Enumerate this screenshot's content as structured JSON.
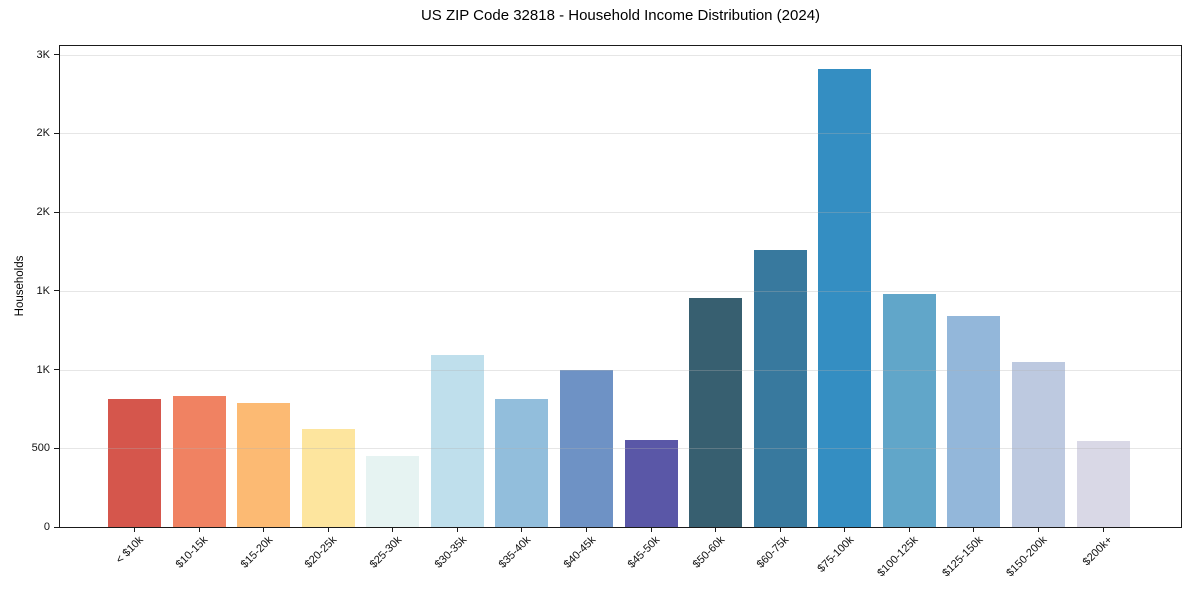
{
  "chart_data": {
    "type": "bar",
    "title": "US ZIP Code 32818 - Household Income Distribution (2024)",
    "xlabel": "",
    "ylabel": "Households",
    "ylim": [
      0,
      3055
    ],
    "grid": "horizontal",
    "legend": "none",
    "background": "#ffffff",
    "axis_color": "#1a1a1a",
    "grid_color": "#e3e3e3",
    "categories": [
      "< $10k",
      "$10-15k",
      "$15-20k",
      "$20-25k",
      "$25-30k",
      "$30-35k",
      "$35-40k",
      "$40-45k",
      "$45-50k",
      "$50-60k",
      "$60-75k",
      "$75-100k",
      "$100-125k",
      "$125-150k",
      "$150-200k",
      "$200k+"
    ],
    "values": [
      815,
      830,
      785,
      625,
      450,
      1095,
      810,
      995,
      550,
      1455,
      1760,
      2910,
      1480,
      1340,
      1045,
      545
    ],
    "bar_colors": [
      "#d5564c",
      "#f08262",
      "#fcba73",
      "#fde59e",
      "#e6f3f2",
      "#bfdfec",
      "#92bedc",
      "#6e92c5",
      "#5a57a7",
      "#375f70",
      "#38799e",
      "#348ec2",
      "#61a6c9",
      "#93b7da",
      "#bdc9e0",
      "#d9d8e6"
    ],
    "yticks": {
      "values": [
        0,
        500,
        1000,
        1500,
        2000,
        2500,
        3000
      ],
      "labels": [
        "0",
        "500",
        "1K",
        "1K",
        "2K",
        "2K",
        "3K"
      ]
    }
  }
}
